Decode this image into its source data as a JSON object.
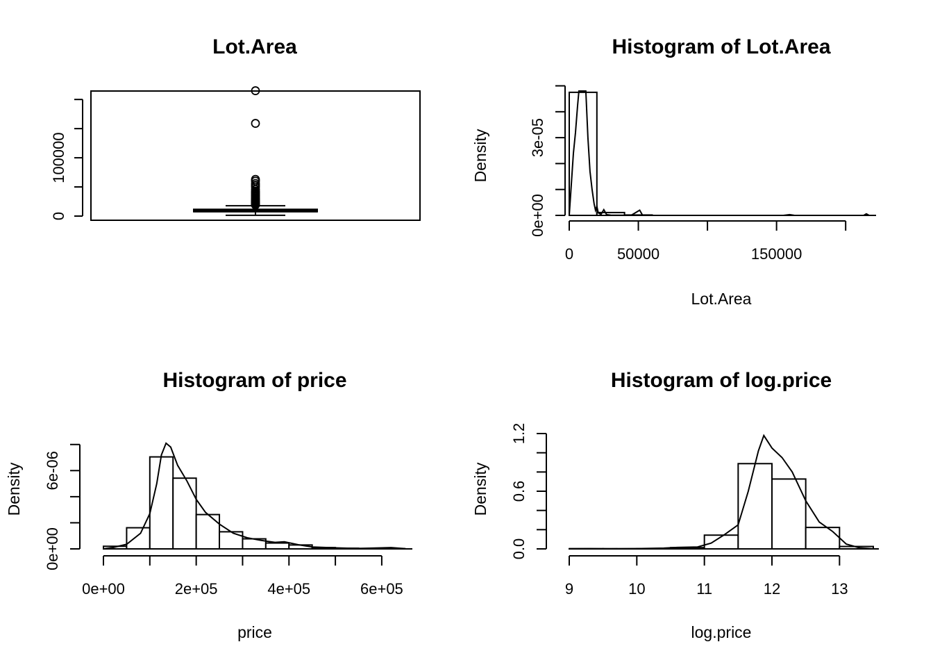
{
  "chart_data": [
    {
      "panel": "boxplot",
      "type": "box",
      "title": "Lot.Area",
      "ylim": [
        0,
        215691
      ],
      "yticks": [
        0,
        50000,
        100000,
        150000,
        200000
      ],
      "ytick_labels": [
        "0",
        "",
        "100000",
        "",
        ""
      ],
      "box": {
        "min": 1300,
        "q1": 7500,
        "median": 9450,
        "q3": 11600,
        "whisker_high": 17800
      },
      "outliers": [
        19000,
        20000,
        21000,
        22000,
        23000,
        24000,
        25000,
        26500,
        28000,
        29500,
        31000,
        33000,
        35000,
        37000,
        39000,
        41000,
        43000,
        46000,
        50000,
        53000,
        56000,
        60000,
        63000,
        159000,
        215000
      ]
    },
    {
      "panel": "hist-lot-area",
      "type": "bar",
      "title": "Histogram of Lot.Area",
      "xlabel": "Lot.Area",
      "ylabel": "Density",
      "xlim": [
        0,
        220000
      ],
      "ylim": [
        0,
        4.8e-05
      ],
      "xticks": [
        0,
        50000,
        100000,
        150000,
        200000
      ],
      "xtick_labels": [
        "0",
        "50000",
        "",
        "150000",
        ""
      ],
      "yticks": [
        0,
        1e-05,
        2e-05,
        3e-05,
        4e-05,
        5e-05
      ],
      "ytick_labels": [
        "0e+00",
        "",
        "",
        "3e-05",
        "",
        ""
      ],
      "bins": [
        [
          0,
          20000,
          4.75e-05
        ],
        [
          20000,
          40000,
          1.1e-06
        ],
        [
          40000,
          60000,
          1.6e-07
        ],
        [
          60000,
          80000,
          0
        ],
        [
          80000,
          100000,
          0
        ],
        [
          100000,
          120000,
          0
        ],
        [
          120000,
          140000,
          0
        ],
        [
          140000,
          160000,
          0
        ],
        [
          160000,
          180000,
          0
        ],
        [
          180000,
          200000,
          0
        ],
        [
          200000,
          220000,
          0
        ]
      ],
      "density": [
        [
          0,
          0
        ],
        [
          1500,
          1.2e-05
        ],
        [
          3000,
          2.4e-05
        ],
        [
          4500,
          3.2e-05
        ],
        [
          6000,
          4.2e-05
        ],
        [
          7000,
          4.8e-05
        ],
        [
          12000,
          4.8e-05
        ],
        [
          13500,
          3e-05
        ],
        [
          15000,
          1.7e-05
        ],
        [
          16500,
          1e-05
        ],
        [
          18000,
          4.5e-06
        ],
        [
          19000,
          2e-06
        ],
        [
          20000,
          3.5e-06
        ],
        [
          21000,
          1e-06
        ],
        [
          23000,
          4e-07
        ],
        [
          25000,
          2.2e-06
        ],
        [
          27000,
          3e-07
        ],
        [
          30000,
          1e-07
        ],
        [
          40000,
          5e-08
        ],
        [
          45000,
          1e-07
        ],
        [
          51000,
          2e-06
        ],
        [
          53000,
          1e-07
        ],
        [
          60000,
          0
        ],
        [
          155000,
          0
        ],
        [
          159500,
          3e-07
        ],
        [
          163000,
          0
        ],
        [
          213000,
          0
        ],
        [
          215000,
          6e-07
        ],
        [
          217000,
          0
        ],
        [
          220000,
          0
        ]
      ]
    },
    {
      "panel": "hist-price",
      "type": "bar",
      "title": "Histogram of price",
      "xlabel": "price",
      "ylabel": "Density",
      "xlim": [
        0,
        660000
      ],
      "ylim": [
        0,
        8.2e-06
      ],
      "xticks": [
        0,
        100000,
        200000,
        300000,
        400000,
        500000,
        600000
      ],
      "xtick_labels": [
        "0e+00",
        "",
        "2e+05",
        "",
        "4e+05",
        "",
        "6e+05"
      ],
      "yticks": [
        0,
        2e-06,
        4e-06,
        6e-06,
        8e-06
      ],
      "ytick_labels": [
        "0e+00",
        "",
        "",
        "6e-06",
        ""
      ],
      "bins": [
        [
          0,
          50000,
          2e-07
        ],
        [
          50000,
          100000,
          1.62e-06
        ],
        [
          100000,
          150000,
          7.05e-06
        ],
        [
          150000,
          200000,
          5.42e-06
        ],
        [
          200000,
          250000,
          2.63e-06
        ],
        [
          250000,
          300000,
          1.31e-06
        ],
        [
          300000,
          350000,
          7.7e-07
        ],
        [
          350000,
          400000,
          4.5e-07
        ],
        [
          400000,
          450000,
          3e-07
        ],
        [
          450000,
          500000,
          1e-07
        ],
        [
          500000,
          550000,
          5e-08
        ],
        [
          550000,
          600000,
          3e-08
        ],
        [
          600000,
          650000,
          2e-08
        ]
      ],
      "density": [
        [
          0,
          0
        ],
        [
          20000,
          1e-07
        ],
        [
          50000,
          3.5e-07
        ],
        [
          80000,
          1.2e-06
        ],
        [
          100000,
          2.7e-06
        ],
        [
          115000,
          5e-06
        ],
        [
          125000,
          7.2e-06
        ],
        [
          135000,
          8.1e-06
        ],
        [
          145000,
          7.8e-06
        ],
        [
          160000,
          6.4e-06
        ],
        [
          180000,
          5.2e-06
        ],
        [
          200000,
          3.8e-06
        ],
        [
          220000,
          2.8e-06
        ],
        [
          250000,
          1.9e-06
        ],
        [
          280000,
          1.2e-06
        ],
        [
          310000,
          8.5e-07
        ],
        [
          340000,
          6.5e-07
        ],
        [
          370000,
          5e-07
        ],
        [
          390000,
          5.5e-07
        ],
        [
          420000,
          3.2e-07
        ],
        [
          450000,
          1.5e-07
        ],
        [
          500000,
          8e-08
        ],
        [
          550000,
          3e-08
        ],
        [
          600000,
          8e-08
        ],
        [
          620000,
          1e-07
        ],
        [
          650000,
          2e-08
        ]
      ]
    },
    {
      "panel": "hist-log-price",
      "type": "bar",
      "title": "Histogram of log.price",
      "xlabel": "log.price",
      "ylabel": "Density",
      "xlim": [
        9,
        13.5
      ],
      "ylim": [
        0,
        1.2
      ],
      "xticks": [
        9,
        10,
        11,
        12,
        13
      ],
      "xtick_labels": [
        "9",
        "10",
        "11",
        "12",
        "13"
      ],
      "yticks": [
        0,
        0.2,
        0.4,
        0.6,
        0.8,
        1.0,
        1.2
      ],
      "ytick_labels": [
        "0.0",
        "",
        "",
        "0.6",
        "",
        "",
        "1.2"
      ],
      "bins": [
        [
          9,
          9.5,
          0.002
        ],
        [
          9.5,
          10,
          0.002
        ],
        [
          10,
          10.5,
          0.003
        ],
        [
          10.5,
          11,
          0.013
        ],
        [
          11,
          11.5,
          0.143
        ],
        [
          11.5,
          12,
          0.887
        ],
        [
          12,
          12.5,
          0.727
        ],
        [
          12.5,
          13,
          0.223
        ],
        [
          13,
          13.5,
          0.025
        ]
      ],
      "density": [
        [
          9,
          0.002
        ],
        [
          9.3,
          0.003
        ],
        [
          9.6,
          0.001
        ],
        [
          10,
          0.003
        ],
        [
          10.4,
          0.008
        ],
        [
          10.6,
          0.015
        ],
        [
          10.9,
          0.02
        ],
        [
          11.1,
          0.06
        ],
        [
          11.3,
          0.15
        ],
        [
          11.5,
          0.25
        ],
        [
          11.65,
          0.6
        ],
        [
          11.8,
          1.02
        ],
        [
          11.88,
          1.18
        ],
        [
          12.0,
          1.05
        ],
        [
          12.15,
          0.95
        ],
        [
          12.3,
          0.8
        ],
        [
          12.5,
          0.5
        ],
        [
          12.7,
          0.28
        ],
        [
          12.9,
          0.18
        ],
        [
          13.1,
          0.05
        ],
        [
          13.3,
          0.01
        ],
        [
          13.5,
          0
        ]
      ]
    }
  ]
}
